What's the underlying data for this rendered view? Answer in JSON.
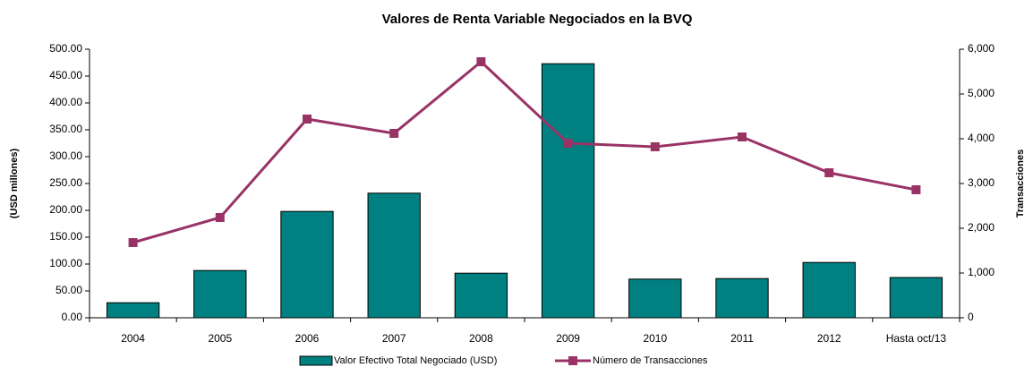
{
  "chart_data": {
    "type": "bar_line",
    "title": "Valores de Renta Variable Negociados en la BVQ",
    "y_label": "(USD millones)",
    "y2_label": "Transacciones",
    "categories": [
      "2004",
      "2005",
      "2006",
      "2007",
      "2008",
      "2009",
      "2010",
      "2011",
      "2012",
      "Hasta oct/13"
    ],
    "series": [
      {
        "name": "Valor Efectivo Total Negociado (USD)",
        "type": "bar",
        "color": "#008080",
        "values": [
          28,
          88,
          198,
          232,
          83,
          473,
          72,
          73,
          103,
          75
        ]
      },
      {
        "name": "Número de Transacciones",
        "type": "line",
        "color": "#993366",
        "axis": "y2",
        "values": [
          1680,
          2240,
          4440,
          4120,
          5720,
          3900,
          3820,
          4040,
          3240,
          2860
        ]
      }
    ],
    "ylim": [
      0,
      500
    ],
    "yticks": [
      {
        "value": 0,
        "label": "0.00"
      },
      {
        "value": 50,
        "label": "50.00"
      },
      {
        "value": 100,
        "label": "100.00"
      },
      {
        "value": 150,
        "label": "150.00"
      },
      {
        "value": 200,
        "label": "200.00"
      },
      {
        "value": 250,
        "label": "250.00"
      },
      {
        "value": 300,
        "label": "300.00"
      },
      {
        "value": 350,
        "label": "350.00"
      },
      {
        "value": 400,
        "label": "400.00"
      },
      {
        "value": 450,
        "label": "450.00"
      },
      {
        "value": 500,
        "label": "500.00"
      }
    ],
    "y2lim": [
      0,
      6000
    ],
    "y2ticks": [
      0,
      {
        "value": 1000,
        "label": "1,000"
      },
      {
        "value": 2000,
        "label": "2,000"
      },
      {
        "value": 3000,
        "label": "3,000"
      },
      {
        "value": 4000,
        "label": "4,000"
      },
      {
        "value": 5000,
        "label": "5,000"
      },
      {
        "value": 6000,
        "label": "6,000"
      }
    ],
    "grid": false,
    "legend": "bottom"
  }
}
